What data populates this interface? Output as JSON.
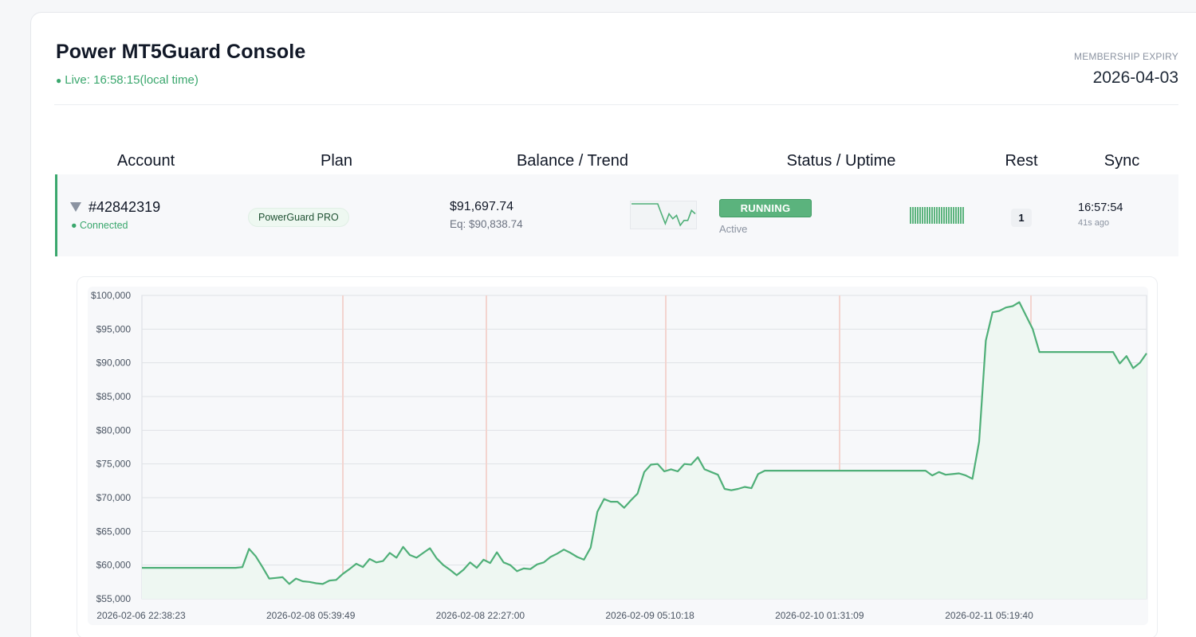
{
  "header": {
    "title": "Power MT5Guard Console",
    "live_dot": "●",
    "live_text": "Live: 16:58:15(local time)",
    "expiry_label": "MEMBERSHIP EXPIRY",
    "expiry_date": "2026-04-03"
  },
  "columns": [
    "Account",
    "Plan",
    "Balance / Trend",
    "Status / Uptime",
    "Rest",
    "Sync"
  ],
  "account_row": {
    "account_id": "#42842319",
    "connection": "● Connected",
    "plan": "PowerGuard PRO",
    "balance": "$91,697.74",
    "equity": "Eq: $90,838.74",
    "status": "RUNNING",
    "status_sub": "Active",
    "rest": "1",
    "sync_time": "16:57:54",
    "sync_ago": "41s ago"
  },
  "colors": {
    "accent": "#3aa76d",
    "line": "#4faf78",
    "fill": "#eef7f2",
    "marker": "#f3d4cf"
  },
  "chart_data": {
    "type": "line",
    "title": "",
    "xlabel": "",
    "ylabel": "",
    "ylim": [
      55000,
      100000
    ],
    "y_ticks": [
      "$55,000",
      "$60,000",
      "$65,000",
      "$70,000",
      "$75,000",
      "$80,000",
      "$85,000",
      "$90,000",
      "$95,000",
      "$100,000"
    ],
    "x_ticks": [
      "2026-02-06 22:38:23",
      "2026-02-08 05:39:49",
      "2026-02-08 22:27:00",
      "2026-02-09 05:10:18",
      "2026-02-10 01:31:09",
      "2026-02-11 05:19:40"
    ],
    "grid": true,
    "legend": "none",
    "series": [
      {
        "values": [
          59600,
          59600,
          59600,
          59600,
          59600,
          59600,
          59600,
          59600,
          59600,
          59600,
          59600,
          59600,
          59600,
          59600,
          59600,
          59700,
          62400,
          61300,
          59700,
          58000,
          58100,
          58200,
          57200,
          58000,
          57600,
          57500,
          57300,
          57200,
          57700,
          57800,
          58700,
          59400,
          60200,
          59700,
          60900,
          60400,
          60600,
          61800,
          61100,
          62700,
          61500,
          61100,
          61800,
          62500,
          61000,
          60000,
          59300,
          58500,
          59300,
          60400,
          59600,
          60800,
          60300,
          61900,
          60400,
          60000,
          59100,
          59500,
          59400,
          60100,
          60400,
          61200,
          61700,
          62300,
          61800,
          61200,
          60800,
          62600,
          67900,
          69800,
          69400,
          69400,
          68500,
          69600,
          70600,
          73800,
          74900,
          75000,
          73900,
          74200,
          73900,
          75000,
          74900,
          76000,
          74200,
          73800,
          73400,
          71300,
          71100,
          71300,
          71600,
          71400,
          73500,
          74000,
          74000,
          74000,
          74000,
          74000,
          74000,
          74000,
          74000,
          74000,
          74000,
          74000,
          74000,
          74000,
          74000,
          74000,
          74000,
          74000,
          74000,
          74000,
          74000,
          74000,
          74000,
          74000,
          74000,
          74000,
          73300,
          73800,
          73400,
          73500,
          73600,
          73300,
          72800,
          78300,
          93300,
          97500,
          97700,
          98200,
          98400,
          99000,
          97000,
          95000,
          91600,
          91600,
          91600,
          91600,
          91600,
          91600,
          91600,
          91600,
          91600,
          91600,
          91600,
          91600,
          89900,
          91000,
          89200,
          90000,
          91400
        ]
      }
    ],
    "sparkline_values": [
      63000,
      63000,
      63000,
      63000,
      63000,
      63000,
      63000,
      63000,
      60000,
      57000,
      60000,
      58500,
      59500,
      56500,
      58000,
      58000,
      61000,
      60000
    ]
  }
}
